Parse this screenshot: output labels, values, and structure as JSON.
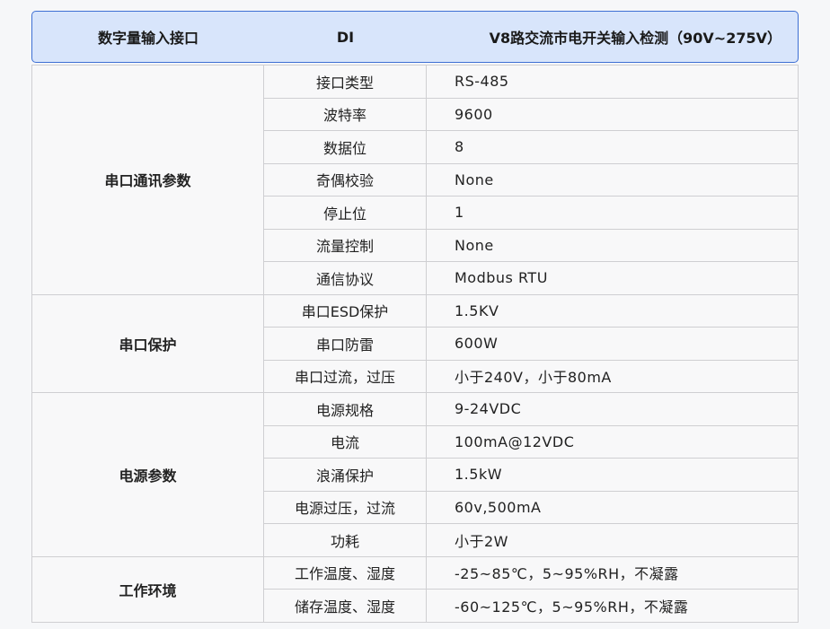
{
  "header": {
    "col1": "数字量输入接口",
    "col2": "DI",
    "col3": "V8路交流市电开关输入检测（90V~275V）"
  },
  "groups": [
    {
      "name": "串口通讯参数",
      "rows": [
        {
          "param": "接口类型",
          "value": "RS-485"
        },
        {
          "param": "波特率",
          "value": "9600"
        },
        {
          "param": "数据位",
          "value": "8"
        },
        {
          "param": "奇偶校验",
          "value": "None"
        },
        {
          "param": "停止位",
          "value": "1"
        },
        {
          "param": "流量控制",
          "value": "None"
        },
        {
          "param": "通信协议",
          "value": "Modbus RTU"
        }
      ]
    },
    {
      "name": "串口保护",
      "rows": [
        {
          "param": "串口ESD保护",
          "value": "1.5KV"
        },
        {
          "param": "串口防雷",
          "value": "600W"
        },
        {
          "param": "串口过流，过压",
          "value": "小于240V，小于80mA"
        }
      ]
    },
    {
      "name": "电源参数",
      "rows": [
        {
          "param": "电源规格",
          "value": "9-24VDC"
        },
        {
          "param": "电流",
          "value": "100mA@12VDC"
        },
        {
          "param": "浪涌保护",
          "value": "1.5kW"
        },
        {
          "param": "电源过压，过流",
          "value": "60v,500mA"
        },
        {
          "param": "功耗",
          "value": "小于2W"
        }
      ]
    },
    {
      "name": "工作环境",
      "rows": [
        {
          "param": "工作温度、湿度",
          "value": "-25~85℃，5~95%RH，不凝露"
        },
        {
          "param": "储存温度、湿度",
          "value": "-60~125℃，5~95%RH，不凝露"
        }
      ]
    }
  ],
  "colors": {
    "header_bg": "#d8e5fb",
    "header_border": "#3f70d4",
    "grid": "#cfcfd2"
  }
}
